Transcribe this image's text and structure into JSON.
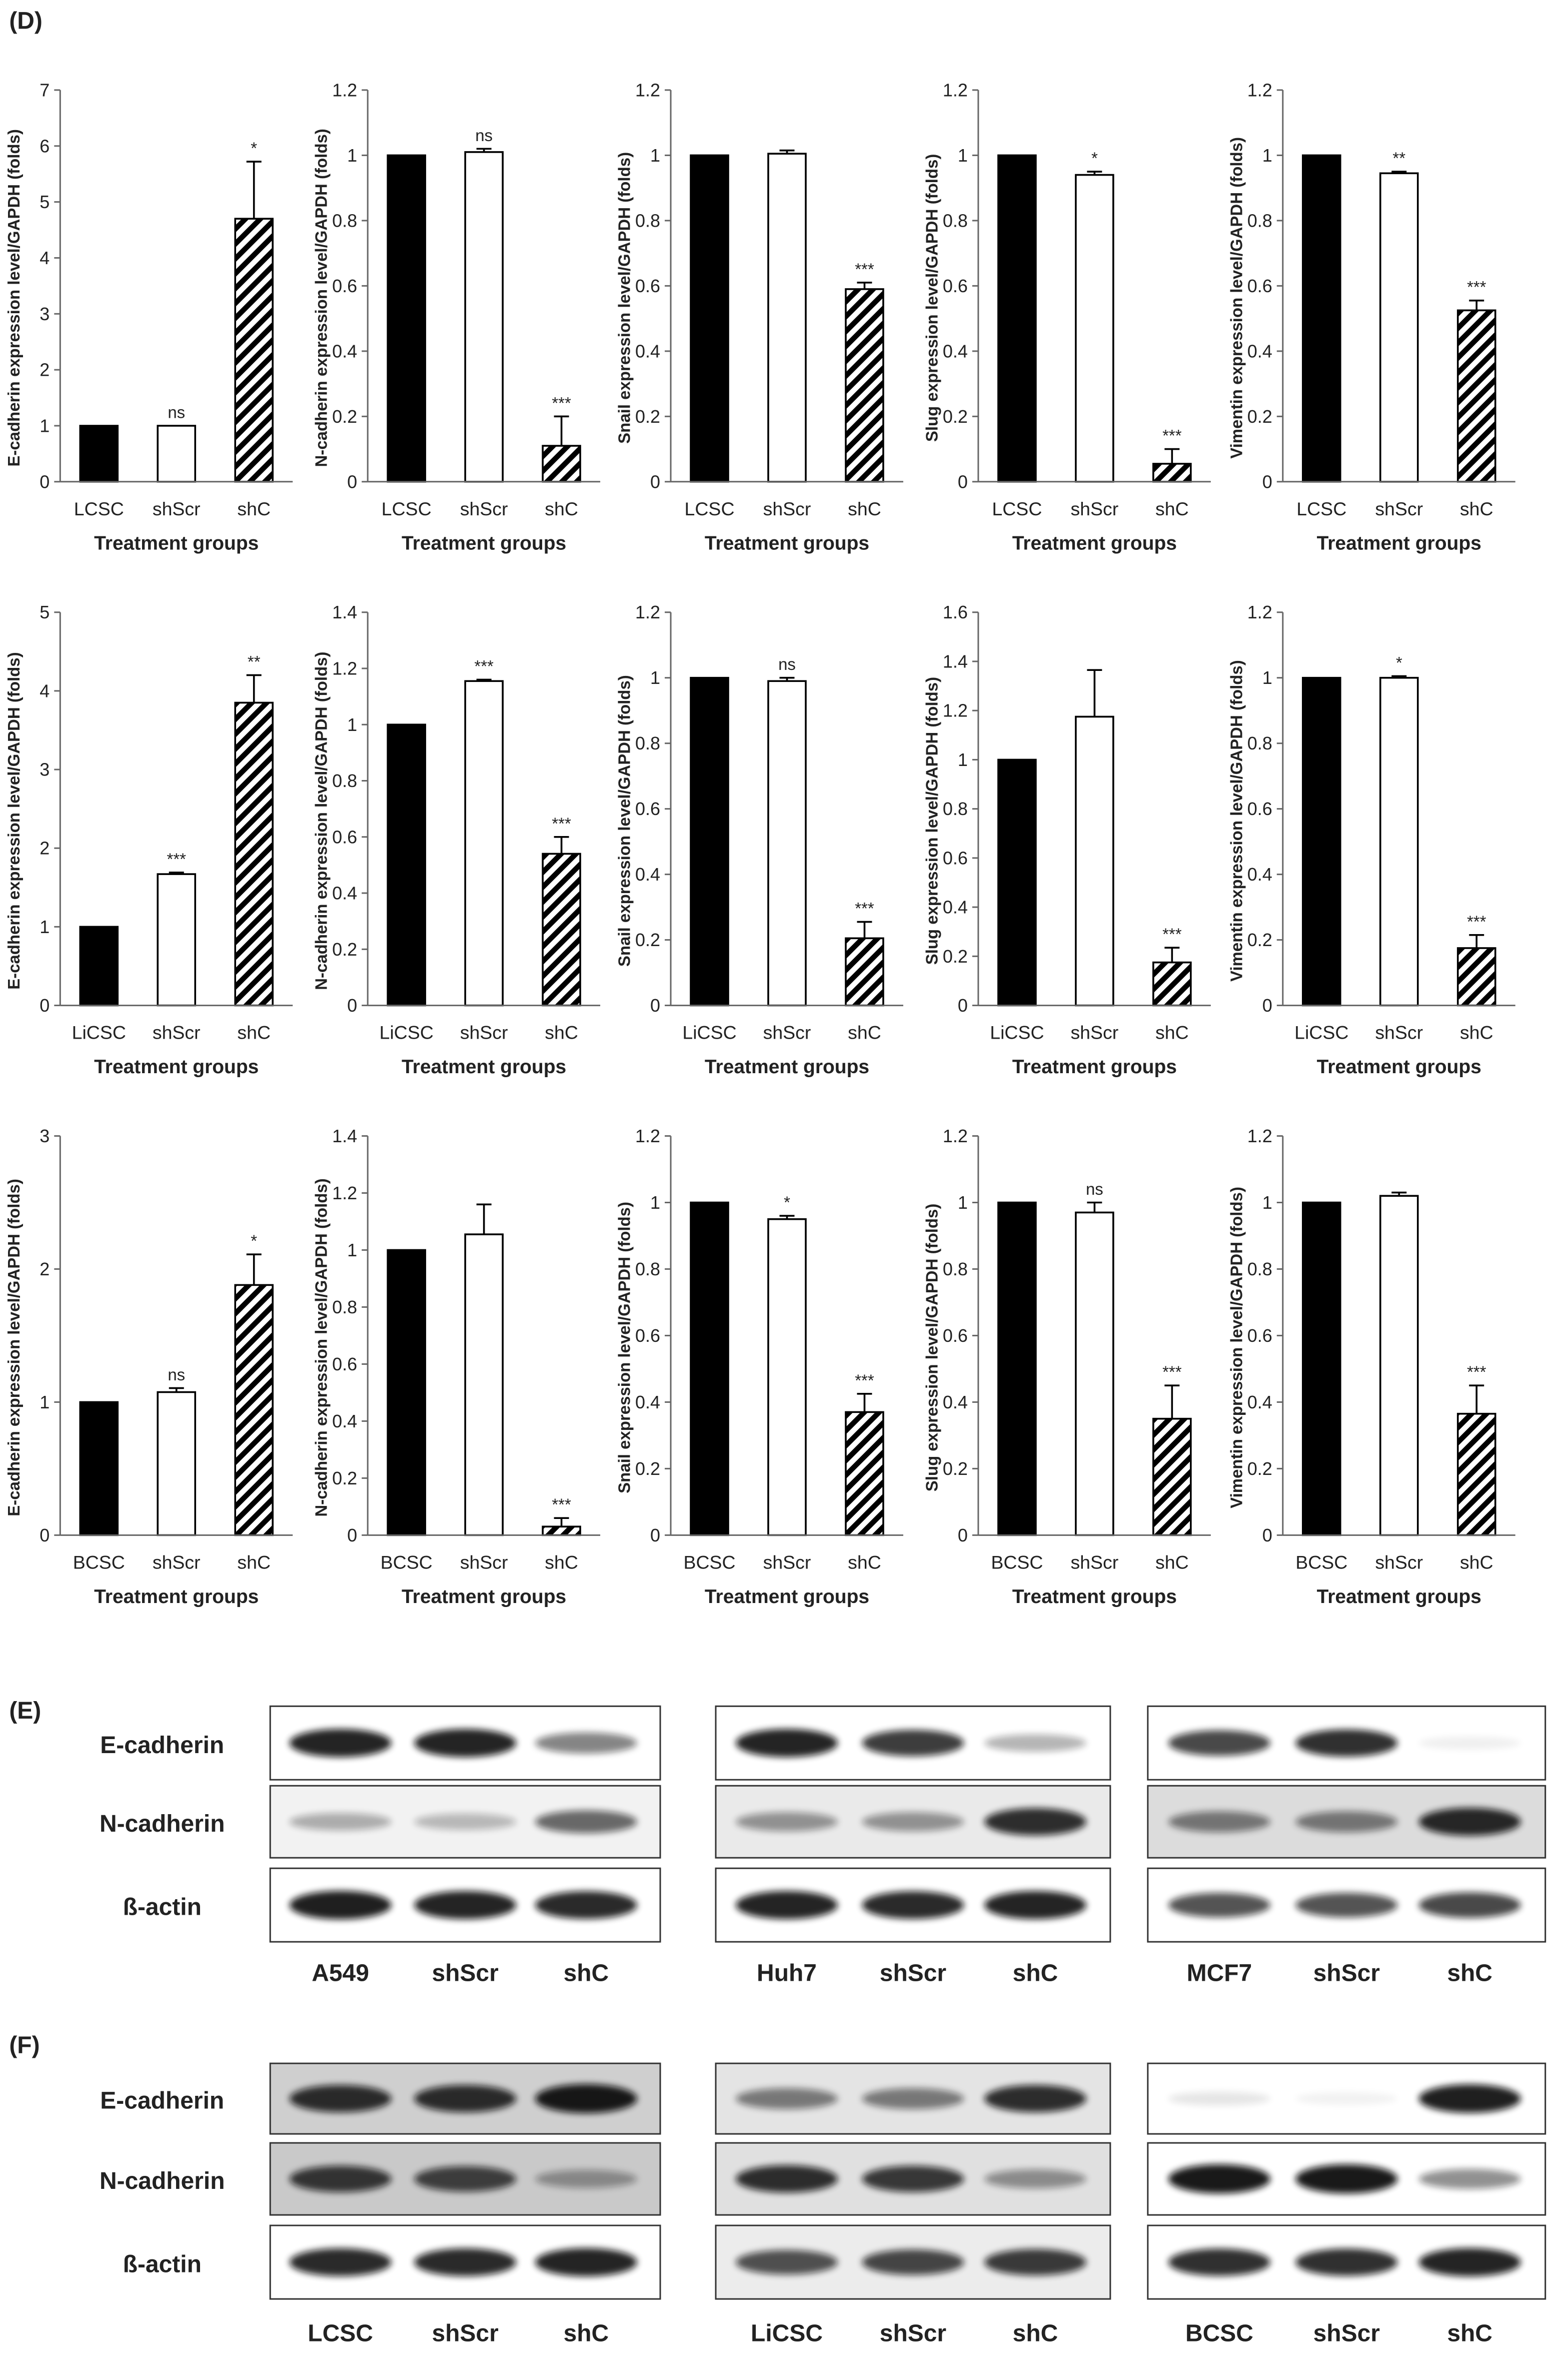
{
  "panel_d_label": "(D)",
  "blots": {
    "E": {
      "label": "(E)",
      "rows": [
        "E-cadherin",
        "N-cadherin",
        "ß-actin"
      ],
      "groups": [
        [
          "A549",
          "shScr",
          "shC"
        ],
        [
          "Huh7",
          "shScr",
          "shC"
        ],
        [
          "MCF7",
          "shScr",
          "shC"
        ]
      ]
    },
    "F": {
      "label": "(F)",
      "rows": [
        "E-cadherin",
        "N-cadherin",
        "ß-actin"
      ],
      "groups": [
        [
          "LCSC",
          "shScr",
          "shC"
        ],
        [
          "LiCSC",
          "shScr",
          "shC"
        ],
        [
          "BCSC",
          "shScr",
          "shC"
        ]
      ]
    }
  },
  "chart_data": [
    {
      "type": "bar",
      "ylabel": "E-cadherin expression level/GAPDH (folds)",
      "xlabel": "Treatment groups",
      "categories": [
        "LCSC",
        "shScr",
        "shC"
      ],
      "values": [
        1,
        1,
        4.7
      ],
      "errors": [
        null,
        null,
        1.02
      ],
      "annotations": [
        null,
        "ns",
        "*"
      ],
      "ylim": [
        0,
        7
      ],
      "yticks": [
        0,
        1,
        2,
        3,
        4,
        5,
        6,
        7
      ]
    },
    {
      "type": "bar",
      "ylabel": "N-cadherin expression level/GAPDH (folds)",
      "xlabel": "Treatment groups",
      "categories": [
        "LCSC",
        "shScr",
        "shC"
      ],
      "values": [
        1,
        1.01,
        0.11
      ],
      "errors": [
        null,
        0.01,
        0.09
      ],
      "annotations": [
        null,
        "ns",
        "***"
      ],
      "ylim": [
        0,
        1.2
      ],
      "yticks": [
        0,
        0.2,
        0.4,
        0.6,
        0.8,
        1,
        1.2
      ]
    },
    {
      "type": "bar",
      "ylabel": "Snail expression level/GAPDH (folds)",
      "xlabel": "Treatment groups",
      "categories": [
        "LCSC",
        "shScr",
        "shC"
      ],
      "values": [
        1,
        1.005,
        0.59
      ],
      "errors": [
        null,
        0.01,
        0.02
      ],
      "annotations": [
        null,
        null,
        "***"
      ],
      "ylim": [
        0,
        1.2
      ],
      "yticks": [
        0,
        0.2,
        0.4,
        0.6,
        0.8,
        1,
        1.2
      ]
    },
    {
      "type": "bar",
      "ylabel": "Slug expression level/GAPDH (folds)",
      "xlabel": "Treatment groups",
      "categories": [
        "LCSC",
        "shScr",
        "shC"
      ],
      "values": [
        1,
        0.94,
        0.055
      ],
      "errors": [
        null,
        0.01,
        0.045
      ],
      "annotations": [
        null,
        "*",
        "***"
      ],
      "ylim": [
        0,
        1.2
      ],
      "yticks": [
        0,
        0.2,
        0.4,
        0.6,
        0.8,
        1,
        1.2
      ]
    },
    {
      "type": "bar",
      "ylabel": "Vimentin expression level/GAPDH (folds)",
      "xlabel": "Treatment groups",
      "categories": [
        "LCSC",
        "shScr",
        "shC"
      ],
      "values": [
        1,
        0.945,
        0.525
      ],
      "errors": [
        null,
        0.005,
        0.03
      ],
      "annotations": [
        null,
        "**",
        "***"
      ],
      "ylim": [
        0,
        1.2
      ],
      "yticks": [
        0,
        0.2,
        0.4,
        0.6,
        0.8,
        1,
        1.2
      ]
    },
    {
      "type": "bar",
      "ylabel": "E-cadherin expression level/GAPDH (folds)",
      "xlabel": "Treatment groups",
      "categories": [
        "LiCSC",
        "shScr",
        "shC"
      ],
      "values": [
        1,
        1.67,
        3.85
      ],
      "errors": [
        null,
        0.02,
        0.35
      ],
      "annotations": [
        null,
        "***",
        "**"
      ],
      "ylim": [
        0,
        5
      ],
      "yticks": [
        0,
        1,
        2,
        3,
        4,
        5
      ]
    },
    {
      "type": "bar",
      "ylabel": "N-cadherin expression level/GAPDH (folds)",
      "xlabel": "Treatment groups",
      "categories": [
        "LiCSC",
        "shScr",
        "shC"
      ],
      "values": [
        1,
        1.155,
        0.54
      ],
      "errors": [
        null,
        0.005,
        0.06
      ],
      "annotations": [
        null,
        "***",
        "***"
      ],
      "ylim": [
        0,
        1.4
      ],
      "yticks": [
        0,
        0.2,
        0.4,
        0.6,
        0.8,
        1,
        1.2,
        1.4
      ]
    },
    {
      "type": "bar",
      "ylabel": "Snail expression level/GAPDH (folds)",
      "xlabel": "Treatment groups",
      "categories": [
        "LiCSC",
        "shScr",
        "shC"
      ],
      "values": [
        1,
        0.99,
        0.205
      ],
      "errors": [
        null,
        0.01,
        0.05
      ],
      "annotations": [
        null,
        "ns",
        "***"
      ],
      "ylim": [
        0,
        1.2
      ],
      "yticks": [
        0,
        0.2,
        0.4,
        0.6,
        0.8,
        1,
        1.2
      ]
    },
    {
      "type": "bar",
      "ylabel": "Slug expression level/GAPDH (folds)",
      "xlabel": "Treatment groups",
      "categories": [
        "LiCSC",
        "shScr",
        "shC"
      ],
      "values": [
        1,
        1.175,
        0.175
      ],
      "errors": [
        null,
        0.19,
        0.06
      ],
      "annotations": [
        null,
        null,
        "***"
      ],
      "ylim": [
        0,
        1.6
      ],
      "yticks": [
        0,
        0.2,
        0.4,
        0.6,
        0.8,
        1,
        1.2,
        1.4,
        1.6
      ]
    },
    {
      "type": "bar",
      "ylabel": "Vimentin expression level/GAPDH (folds)",
      "xlabel": "Treatment groups",
      "categories": [
        "LiCSC",
        "shScr",
        "shC"
      ],
      "values": [
        1,
        1.0,
        0.175
      ],
      "errors": [
        null,
        0.005,
        0.04
      ],
      "annotations": [
        null,
        "*",
        "***"
      ],
      "ylim": [
        0,
        1.2
      ],
      "yticks": [
        0,
        0.2,
        0.4,
        0.6,
        0.8,
        1,
        1.2
      ]
    },
    {
      "type": "bar",
      "ylabel": "E-cadherin expression level/GAPDH (folds)",
      "xlabel": "Treatment groups",
      "categories": [
        "BCSC",
        "shScr",
        "shC"
      ],
      "values": [
        1,
        1.075,
        1.88
      ],
      "errors": [
        null,
        0.03,
        0.23
      ],
      "annotations": [
        null,
        "ns",
        "*"
      ],
      "ylim": [
        0,
        3
      ],
      "yticks": [
        0,
        1,
        2,
        3
      ]
    },
    {
      "type": "bar",
      "ylabel": "N-cadherin expression level/GAPDH (folds)",
      "xlabel": "Treatment groups",
      "categories": [
        "BCSC",
        "shScr",
        "shC"
      ],
      "values": [
        1,
        1.055,
        0.03
      ],
      "errors": [
        null,
        0.105,
        0.03
      ],
      "annotations": [
        null,
        null,
        "***"
      ],
      "ylim": [
        0,
        1.4
      ],
      "yticks": [
        0,
        0.2,
        0.4,
        0.6,
        0.8,
        1,
        1.2,
        1.4
      ]
    },
    {
      "type": "bar",
      "ylabel": "Snail expression level/GAPDH (folds)",
      "xlabel": "Treatment groups",
      "categories": [
        "BCSC",
        "shScr",
        "shC"
      ],
      "values": [
        1,
        0.95,
        0.37
      ],
      "errors": [
        null,
        0.01,
        0.055
      ],
      "annotations": [
        null,
        "*",
        "***"
      ],
      "ylim": [
        0,
        1.2
      ],
      "yticks": [
        0,
        0.2,
        0.4,
        0.6,
        0.8,
        1,
        1.2
      ]
    },
    {
      "type": "bar",
      "ylabel": "Slug expression level/GAPDH (folds)",
      "xlabel": "Treatment groups",
      "categories": [
        "BCSC",
        "shScr",
        "shC"
      ],
      "values": [
        1,
        0.97,
        0.35
      ],
      "errors": [
        null,
        0.03,
        0.1
      ],
      "annotations": [
        null,
        "ns",
        "***"
      ],
      "ylim": [
        0,
        1.2
      ],
      "yticks": [
        0,
        0.2,
        0.4,
        0.6,
        0.8,
        1,
        1.2
      ]
    },
    {
      "type": "bar",
      "ylabel": "Vimentin expression level/GAPDH (folds)",
      "xlabel": "Treatment groups",
      "categories": [
        "BCSC",
        "shScr",
        "shC"
      ],
      "values": [
        1,
        1.02,
        0.365
      ],
      "errors": [
        null,
        0.01,
        0.085
      ],
      "annotations": [
        null,
        null,
        "***"
      ],
      "ylim": [
        0,
        1.2
      ],
      "yticks": [
        0,
        0.2,
        0.4,
        0.6,
        0.8,
        1,
        1.2
      ]
    }
  ]
}
